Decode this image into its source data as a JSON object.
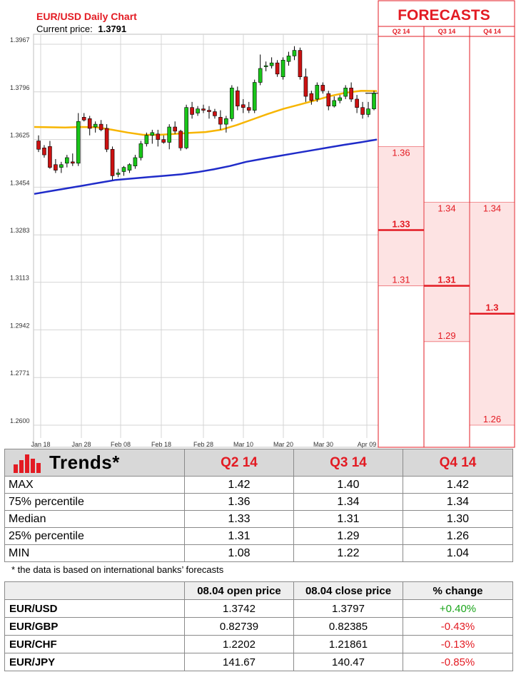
{
  "chart_data": {
    "type": "candlestick",
    "title": "EUR/USD Daily Chart",
    "current_price_label": "Current price:",
    "current_price": "1.3791",
    "yticks": [
      "1.3967",
      "1.3796",
      "1.3625",
      "1.3454",
      "1.3283",
      "1.3113",
      "1.2942",
      "1.2771",
      "1.2600"
    ],
    "ylim": [
      1.26,
      1.3967
    ],
    "xticks": [
      "Jan 18",
      "Jan 28",
      "Feb 08",
      "Feb 18",
      "Feb 28",
      "Mar 10",
      "Mar 20",
      "Mar 30",
      "Apr 09"
    ],
    "grid": true,
    "candles": [
      [
        1.362,
        1.364,
        1.358,
        1.359
      ],
      [
        1.3595,
        1.3605,
        1.356,
        1.357
      ],
      [
        1.36,
        1.362,
        1.352,
        1.3525
      ],
      [
        1.3535,
        1.3555,
        1.3505,
        1.3515
      ],
      [
        1.3525,
        1.3545,
        1.3505,
        1.3535
      ],
      [
        1.354,
        1.357,
        1.3525,
        1.356
      ],
      [
        1.3545,
        1.3575,
        1.353,
        1.354
      ],
      [
        1.354,
        1.372,
        1.353,
        1.369
      ],
      [
        1.3705,
        1.372,
        1.369,
        1.3695
      ],
      [
        1.37,
        1.371,
        1.364,
        1.3665
      ],
      [
        1.367,
        1.369,
        1.365,
        1.368
      ],
      [
        1.368,
        1.3695,
        1.3655,
        1.366
      ],
      [
        1.3665,
        1.368,
        1.358,
        1.359
      ],
      [
        1.359,
        1.36,
        1.348,
        1.3495
      ],
      [
        1.35,
        1.352,
        1.349,
        1.3505
      ],
      [
        1.351,
        1.353,
        1.3495,
        1.3525
      ],
      [
        1.3515,
        1.354,
        1.3505,
        1.3535
      ],
      [
        1.353,
        1.357,
        1.352,
        1.356
      ],
      [
        1.356,
        1.362,
        1.355,
        1.361
      ],
      [
        1.361,
        1.365,
        1.36,
        1.364
      ],
      [
        1.364,
        1.366,
        1.361,
        1.365
      ],
      [
        1.3645,
        1.366,
        1.36,
        1.3625
      ],
      [
        1.3625,
        1.364,
        1.361,
        1.3615
      ],
      [
        1.3615,
        1.368,
        1.359,
        1.367
      ],
      [
        1.367,
        1.369,
        1.3645,
        1.3655
      ],
      [
        1.3655,
        1.366,
        1.3585,
        1.3595
      ],
      [
        1.3595,
        1.375,
        1.359,
        1.374
      ],
      [
        1.374,
        1.376,
        1.37,
        1.3715
      ],
      [
        1.372,
        1.3745,
        1.371,
        1.3735
      ],
      [
        1.3735,
        1.375,
        1.372,
        1.373
      ],
      [
        1.373,
        1.3745,
        1.37,
        1.3725
      ],
      [
        1.3725,
        1.3735,
        1.37,
        1.371
      ],
      [
        1.3705,
        1.373,
        1.366,
        1.368
      ],
      [
        1.368,
        1.371,
        1.365,
        1.37
      ],
      [
        1.37,
        1.382,
        1.369,
        1.381
      ],
      [
        1.38,
        1.3815,
        1.373,
        1.3745
      ],
      [
        1.375,
        1.377,
        1.372,
        1.374
      ],
      [
        1.374,
        1.376,
        1.372,
        1.373
      ],
      [
        1.373,
        1.384,
        1.372,
        1.383
      ],
      [
        1.383,
        1.393,
        1.382,
        1.388
      ],
      [
        1.389,
        1.3905,
        1.387,
        1.389
      ],
      [
        1.389,
        1.392,
        1.388,
        1.39
      ],
      [
        1.39,
        1.391,
        1.385,
        1.386
      ],
      [
        1.385,
        1.392,
        1.384,
        1.391
      ],
      [
        1.3905,
        1.394,
        1.389,
        1.3925
      ],
      [
        1.3925,
        1.396,
        1.391,
        1.3945
      ],
      [
        1.3945,
        1.3955,
        1.384,
        1.385
      ],
      [
        1.385,
        1.388,
        1.376,
        1.378
      ],
      [
        1.379,
        1.38,
        1.375,
        1.3765
      ],
      [
        1.377,
        1.383,
        1.376,
        1.382
      ],
      [
        1.382,
        1.383,
        1.379,
        1.38
      ],
      [
        1.379,
        1.38,
        1.373,
        1.3745
      ],
      [
        1.3745,
        1.378,
        1.374,
        1.3765
      ],
      [
        1.3765,
        1.3785,
        1.3755,
        1.3775
      ],
      [
        1.378,
        1.382,
        1.377,
        1.381
      ],
      [
        1.381,
        1.383,
        1.376,
        1.377
      ],
      [
        1.377,
        1.3785,
        1.372,
        1.374
      ],
      [
        1.374,
        1.376,
        1.37,
        1.3715
      ],
      [
        1.3715,
        1.376,
        1.3705,
        1.3735
      ],
      [
        1.3735,
        1.38,
        1.373,
        1.3791
      ]
    ],
    "ma_fast": [
      1.367,
      1.3669,
      1.3668,
      1.367,
      1.3669,
      1.366,
      1.365,
      1.3642,
      1.3642,
      1.3645,
      1.3649,
      1.3652,
      1.366,
      1.3677,
      1.3697,
      1.3717,
      1.3735,
      1.375,
      1.3765,
      1.3781,
      1.3793,
      1.38,
      1.3799
    ],
    "ma_slow": [
      1.343,
      1.344,
      1.345,
      1.346,
      1.347,
      1.348,
      1.3485,
      1.349,
      1.3495,
      1.35,
      1.3508,
      1.3518,
      1.353,
      1.3545,
      1.3556,
      1.3566,
      1.3576,
      1.3586,
      1.3596,
      1.3606,
      1.3615,
      1.3625
    ],
    "forecasts": {
      "title": "FORECASTS",
      "columns": [
        {
          "label": "Q2 14",
          "band": [
            1.31,
            1.36
          ],
          "median": 1.33,
          "low": "1.31",
          "high": "1.36",
          "median_label": "1.33"
        },
        {
          "label": "Q3 14",
          "band": [
            1.29,
            1.34
          ],
          "median": 1.31,
          "low": "1.29",
          "high": "1.34",
          "median_label": "1.31"
        },
        {
          "label": "Q4 14",
          "band": [
            1.26,
            1.34
          ],
          "median": 1.3,
          "low": "1.26",
          "high": "1.34",
          "median_label": "1.3"
        }
      ]
    }
  },
  "trends": {
    "title": "Trends*",
    "quarters": [
      "Q2 14",
      "Q3 14",
      "Q4 14"
    ],
    "rows": [
      {
        "label": "MAX",
        "values": [
          "1.42",
          "1.40",
          "1.42"
        ]
      },
      {
        "label": "75% percentile",
        "values": [
          "1.36",
          "1.34",
          "1.34"
        ]
      },
      {
        "label": "Median",
        "values": [
          "1.33",
          "1.31",
          "1.30"
        ]
      },
      {
        "label": "25% percentile",
        "values": [
          "1.31",
          "1.29",
          "1.26"
        ]
      },
      {
        "label": "MIN",
        "values": [
          "1.08",
          "1.22",
          "1.04"
        ]
      }
    ],
    "footnote": "* the data is based on international banks’ forecasts"
  },
  "prices": {
    "headers": [
      "08.04 open price",
      "08.04 close price",
      "% change"
    ],
    "rows": [
      {
        "pair": "EUR/USD",
        "open": "1.3742",
        "close": "1.3797",
        "change": "+0.40%"
      },
      {
        "pair": "EUR/GBP",
        "open": "0.82739",
        "close": "0.82385",
        "change": "-0.43%"
      },
      {
        "pair": "EUR/CHF",
        "open": "1.2202",
        "close": "1.21861",
        "change": "-0.13%"
      },
      {
        "pair": "EUR/JPY",
        "open": "141.67",
        "close": "140.47",
        "change": "-0.85%"
      }
    ]
  },
  "colors": {
    "up": "#19c519",
    "down": "#cc1111",
    "ma_fast": "#f7b500",
    "ma_slow": "#1f2bc9",
    "forecast_red": "#e31b23",
    "forecast_band": "#fde3e3"
  }
}
